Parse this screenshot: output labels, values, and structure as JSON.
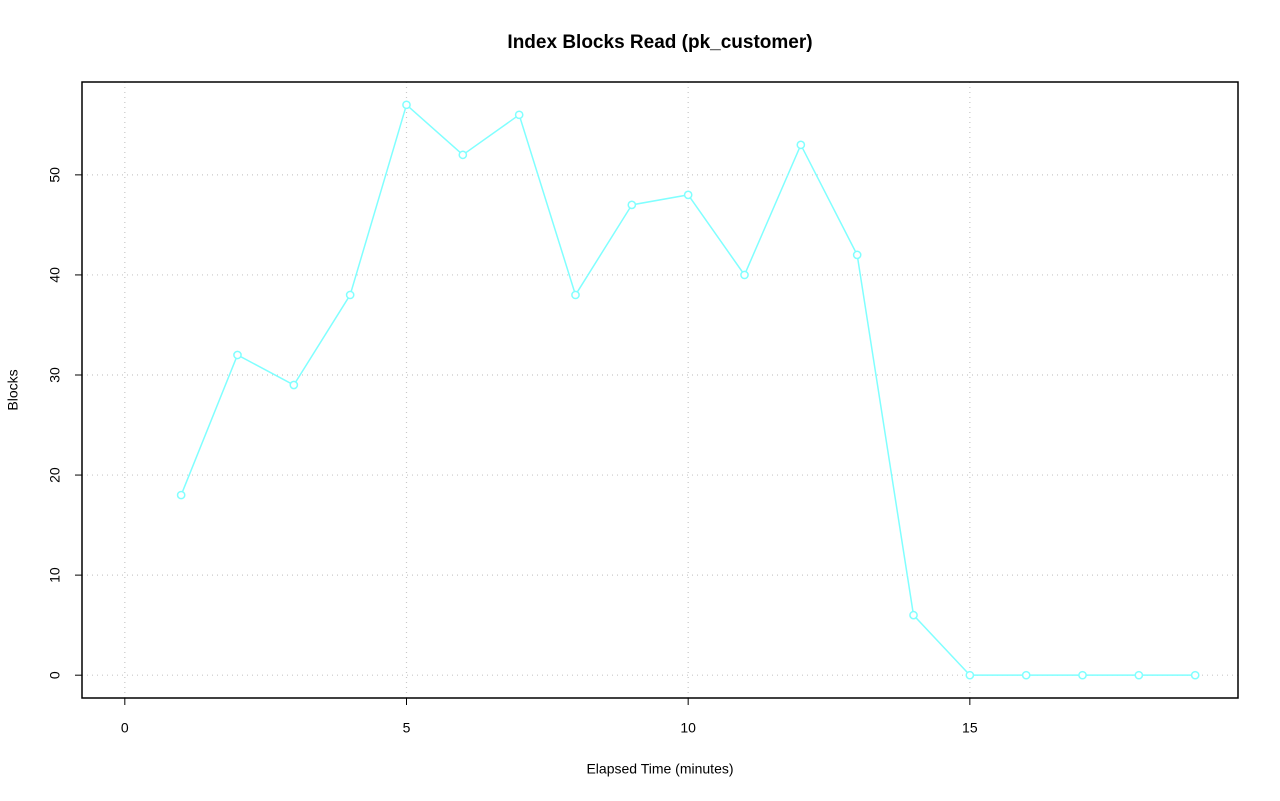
{
  "chart_data": {
    "type": "line",
    "title": "Index Blocks Read (pk_customer)",
    "x_label": "Elapsed Time (minutes)",
    "y_label": "Blocks",
    "x": [
      1,
      2,
      3,
      4,
      5,
      6,
      7,
      8,
      9,
      10,
      11,
      12,
      13,
      14,
      15,
      16,
      17,
      18,
      19
    ],
    "values": [
      18,
      32,
      29,
      38,
      57,
      52,
      56,
      38,
      47,
      48,
      40,
      53,
      42,
      6,
      0,
      0,
      0,
      0,
      0
    ],
    "color": "#80ffff",
    "markers": true,
    "xlim": [
      -0.76,
      19.76
    ],
    "xticks": [
      0,
      5,
      10,
      15
    ],
    "ylim": [
      -2.28,
      59.28
    ],
    "yticks": [
      0,
      10,
      20,
      30,
      40,
      50
    ],
    "grid": true
  }
}
